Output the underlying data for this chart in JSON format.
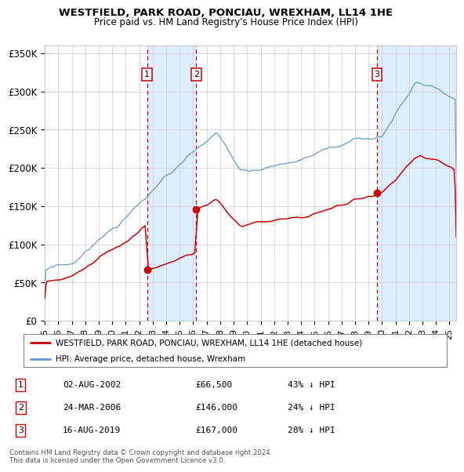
{
  "title": "WESTFIELD, PARK ROAD, PONCIAU, WREXHAM, LL14 1HE",
  "subtitle": "Price paid vs. HM Land Registry's House Price Index (HPI)",
  "red_line_label": "WESTFIELD, PARK ROAD, PONCIAU, WREXHAM, LL14 1HE (detached house)",
  "blue_line_label": "HPI: Average price, detached house, Wrexham",
  "transactions": [
    {
      "num": 1,
      "date": "02-AUG-2002",
      "year": 2002.58,
      "price": 66500,
      "pct": "43% ↓ HPI"
    },
    {
      "num": 2,
      "date": "24-MAR-2006",
      "year": 2006.22,
      "price": 146000,
      "pct": "24% ↓ HPI"
    },
    {
      "num": 3,
      "date": "16-AUG-2019",
      "year": 2019.62,
      "price": 167000,
      "pct": "28% ↓ HPI"
    }
  ],
  "footnote": "Contains HM Land Registry data © Crown copyright and database right 2024.\nThis data is licensed under the Open Government Licence v3.0.",
  "ylim": [
    0,
    360000
  ],
  "xlim_start": 1995.0,
  "xlim_end": 2025.5,
  "yticks": [
    0,
    50000,
    100000,
    150000,
    200000,
    250000,
    300000,
    350000
  ],
  "ytick_labels": [
    "£0",
    "£50K",
    "£100K",
    "£150K",
    "£200K",
    "£250K",
    "£300K",
    "£350K"
  ],
  "xticks": [
    1995,
    1996,
    1997,
    1998,
    1999,
    2000,
    2001,
    2002,
    2003,
    2004,
    2005,
    2006,
    2007,
    2008,
    2009,
    2010,
    2011,
    2012,
    2013,
    2014,
    2015,
    2016,
    2017,
    2018,
    2019,
    2020,
    2021,
    2022,
    2023,
    2024,
    2025
  ],
  "red_color": "#cc0000",
  "blue_color": "#6699cc",
  "shading_color": "#ddeeff",
  "grid_color": "#cccccc",
  "background_color": "#ffffff"
}
